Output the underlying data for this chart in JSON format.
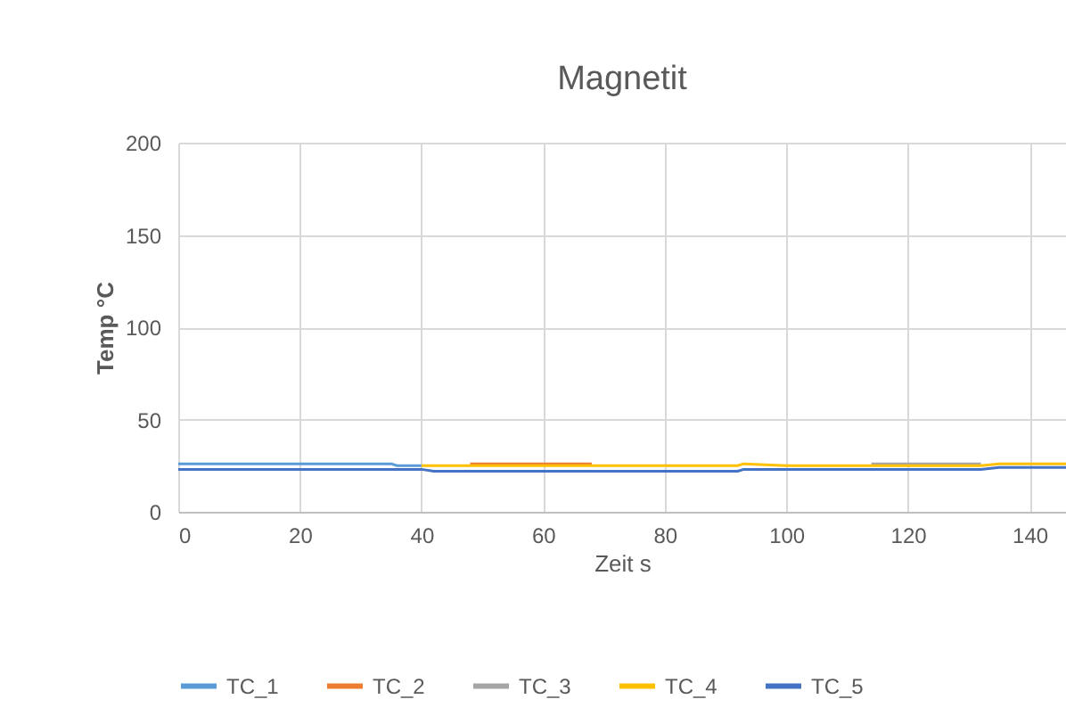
{
  "chart_data": {
    "type": "line",
    "title": "Magnetit",
    "xlabel": "Zeit s",
    "ylabel": "Temp °C",
    "series": [
      {
        "name": "TC_1",
        "color": "#5b9bd5",
        "x": [
          0,
          35,
          36,
          40
        ],
        "values": [
          26,
          26,
          25,
          25
        ]
      },
      {
        "name": "TC_2",
        "color": "#ed7d31",
        "x": [
          48,
          68
        ],
        "values": [
          26,
          26
        ]
      },
      {
        "name": "TC_3",
        "color": "#a5a5a5",
        "x": [
          114,
          132
        ],
        "values": [
          26,
          26
        ]
      },
      {
        "name": "TC_4",
        "color": "#ffc000",
        "x": [
          40,
          48,
          68,
          92,
          93,
          100,
          132,
          135,
          146
        ],
        "values": [
          25,
          25,
          25,
          25,
          26,
          25,
          25,
          26,
          26
        ]
      },
      {
        "name": "TC_5",
        "color": "#4472c4",
        "x": [
          0,
          40,
          42,
          48,
          92,
          93,
          100,
          132,
          135,
          146
        ],
        "values": [
          23,
          23,
          22,
          22,
          22,
          23,
          23,
          23,
          24,
          24
        ]
      }
    ],
    "xlim": [
      0,
      146
    ],
    "xticks": [
      0,
      20,
      40,
      60,
      80,
      100,
      120,
      140
    ],
    "ylim": [
      0,
      200
    ],
    "yticks": [
      0,
      50,
      100,
      150,
      200
    ],
    "grid": true,
    "legend": "bottom",
    "marker": "none",
    "line_style": "solid"
  }
}
